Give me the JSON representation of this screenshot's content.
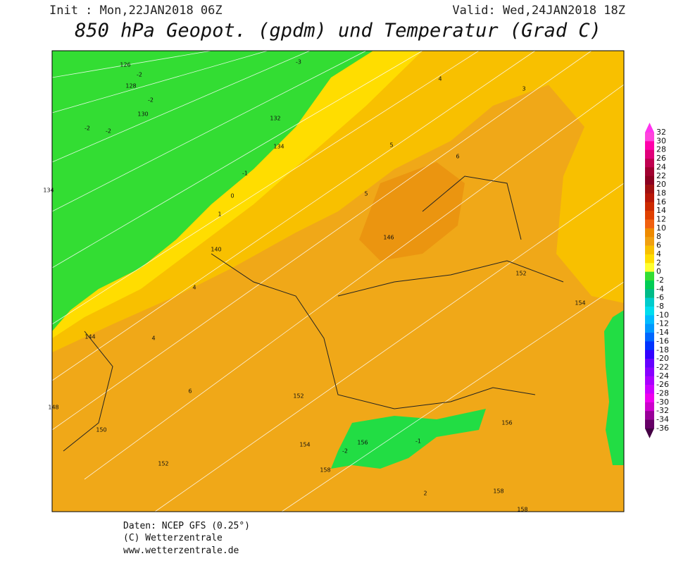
{
  "header": {
    "init": "Init : Mon,22JAN2018 06Z",
    "valid": "Valid: Wed,24JAN2018 18Z",
    "title": "850 hPa Geopot. (gpdm) und Temperatur (Grad C)"
  },
  "colorbar": {
    "levels": [
      32,
      30,
      28,
      26,
      24,
      22,
      20,
      18,
      16,
      14,
      12,
      10,
      8,
      6,
      4,
      2,
      0,
      -2,
      -4,
      -6,
      -8,
      -10,
      -12,
      -14,
      -16,
      -18,
      -20,
      -22,
      -24,
      -26,
      -28,
      -30,
      -32,
      -34,
      -36
    ],
    "colors": [
      "#ff44dd",
      "#ff00aa",
      "#e0007a",
      "#c00050",
      "#a00030",
      "#8b0020",
      "#a01010",
      "#b81808",
      "#cc2a00",
      "#e04000",
      "#f06010",
      "#ee8a00",
      "#f0a010",
      "#f8c000",
      "#ffdd00",
      "#ffff30",
      "#33dd33",
      "#00cc55",
      "#00bb88",
      "#00cccc",
      "#00ddee",
      "#00bbff",
      "#0099ff",
      "#0066ff",
      "#0033ff",
      "#3300ff",
      "#6600ff",
      "#8800ff",
      "#aa00ff",
      "#cc00ff",
      "#ee00ee",
      "#cc00cc",
      "#990099",
      "#660066"
    ],
    "above_color": "#ff33ee",
    "below_color": "#440044"
  },
  "map_labels": [
    126,
    128,
    130,
    132,
    134,
    134,
    140,
    144,
    146,
    148,
    150,
    152,
    152,
    152,
    154,
    154,
    156,
    156,
    158,
    158,
    158,
    -3,
    -2,
    -2,
    -2,
    -2,
    -1,
    0,
    1,
    4,
    4,
    5,
    6,
    6,
    5,
    4,
    3,
    2,
    -2,
    -1
  ],
  "footer": {
    "source": "Daten: NCEP GFS (0.25°)",
    "copyright": "(C) Wetterzentrale",
    "url": "www.wetterzentrale.de"
  }
}
